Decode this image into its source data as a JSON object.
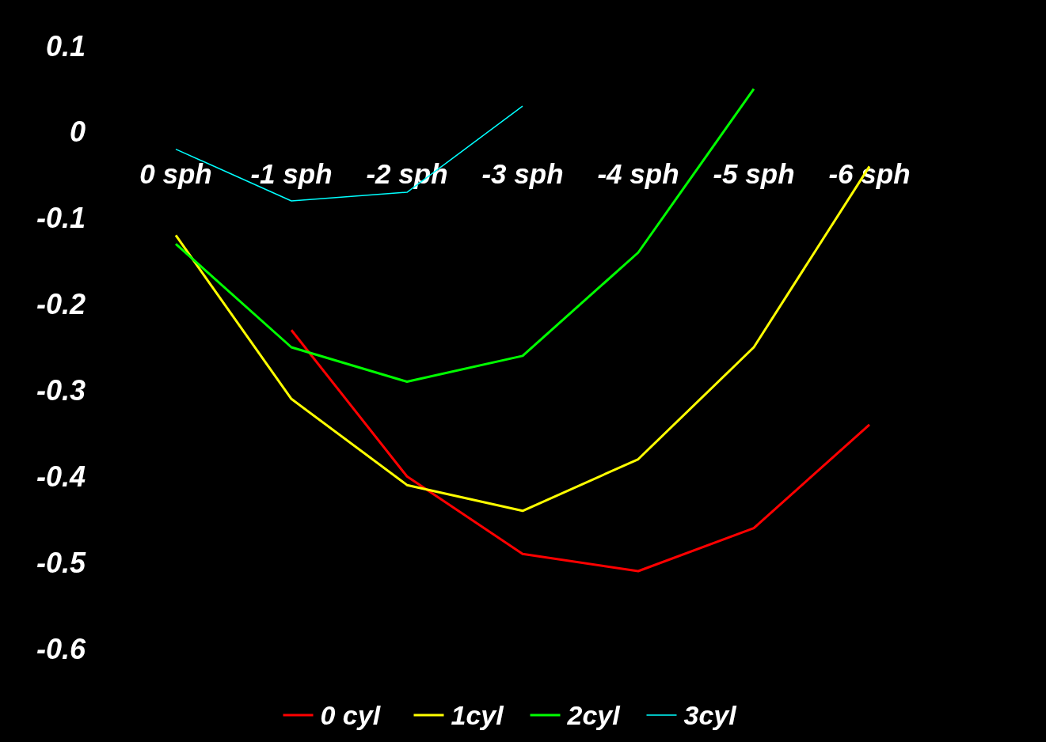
{
  "chart_data": {
    "type": "line",
    "categories": [
      "0 sph",
      "-1 sph",
      "-2 sph",
      "-3 sph",
      "-4 sph",
      "-5 sph",
      "-6 sph"
    ],
    "series": [
      {
        "name": "0 cyl",
        "color": "#ff0000",
        "values": [
          null,
          -0.23,
          -0.4,
          -0.49,
          -0.51,
          -0.46,
          -0.34
        ]
      },
      {
        "name": "1cyl",
        "color": "#ffff00",
        "values": [
          -0.12,
          -0.31,
          -0.41,
          -0.44,
          -0.38,
          -0.25,
          -0.04
        ]
      },
      {
        "name": "2cyl",
        "color": "#00ff00",
        "values": [
          -0.13,
          -0.25,
          -0.29,
          -0.26,
          -0.14,
          0.05,
          null
        ]
      },
      {
        "name": "3cyl",
        "color": "#00ffff",
        "values": [
          -0.02,
          -0.08,
          -0.07,
          0.03,
          null,
          null,
          null
        ]
      }
    ],
    "ylim": [
      -0.6,
      0.1
    ],
    "yticks": [
      -0.6,
      -0.5,
      -0.4,
      -0.3,
      -0.2,
      -0.1,
      0,
      0.1
    ],
    "grid": false,
    "legend": "bottom",
    "marker": "none",
    "line_style": "solid"
  }
}
